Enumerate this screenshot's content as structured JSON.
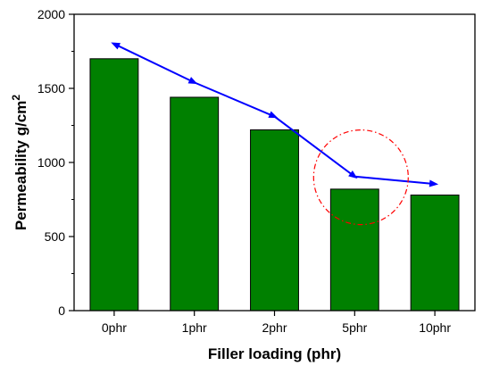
{
  "chart_data": {
    "type": "bar",
    "categories": [
      "0phr",
      "1phr",
      "2phr",
      "5phr",
      "10phr"
    ],
    "series": [
      {
        "kind": "bar",
        "color": "#008000",
        "values": [
          1700,
          1440,
          1220,
          820,
          780
        ]
      },
      {
        "kind": "line",
        "color": "#0000ff",
        "marker": "arrow",
        "values": [
          1800,
          1540,
          1310,
          905,
          855
        ]
      }
    ],
    "annotation": {
      "shape": "dash-dot-circle",
      "color": "#ff0000",
      "category": "5phr",
      "value": 900
    },
    "xlabel": "Filler loading (phr)",
    "ylabel": "Permeability g/cm",
    "ylabel_superscript": "2",
    "ylim": [
      0,
      2000
    ],
    "yticks": [
      0,
      500,
      1000,
      1500,
      2000
    ],
    "grid": false
  }
}
